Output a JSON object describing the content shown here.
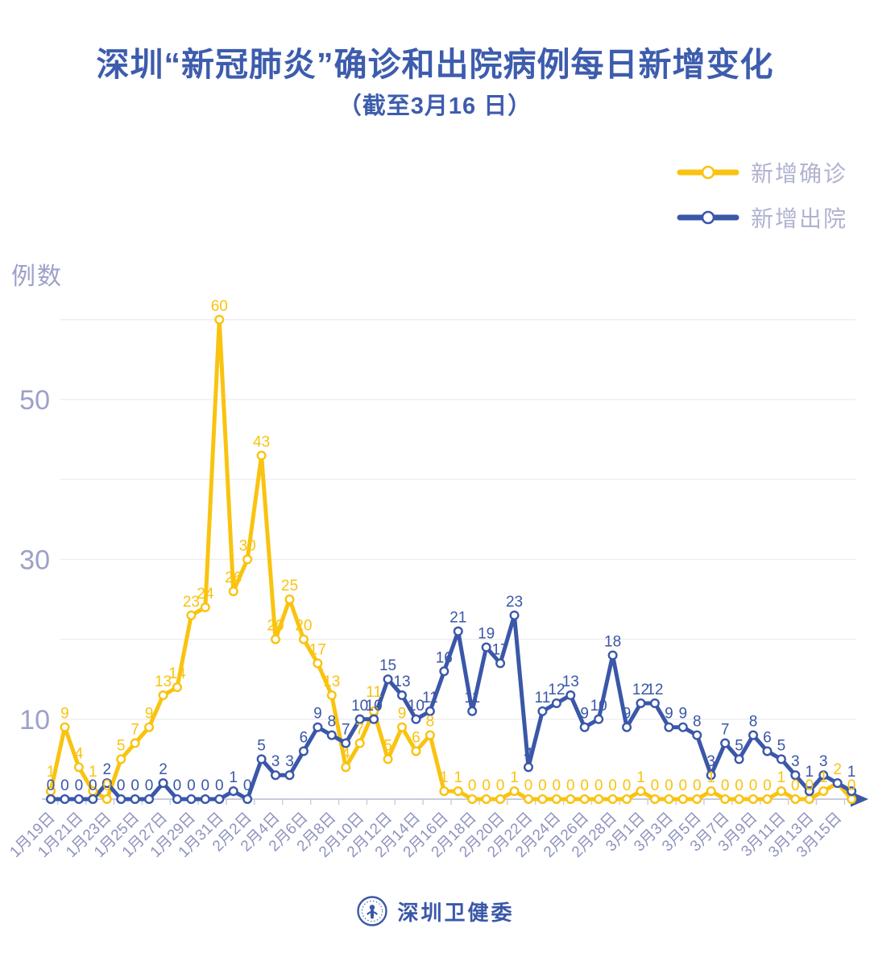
{
  "title": "深圳“新冠肺炎”确诊和出院病例每日新增变化",
  "subtitle": "（截至3月16 日）",
  "colors": {
    "confirmed_yellow": "#f9c30f",
    "discharged_blue": "#3a57a8",
    "title_blue": "#3d5cad",
    "axis_text": "#9da1c9",
    "date_text": "#8e93bf",
    "grid_line": "#ececf2",
    "axis_line": "#c9cbdb",
    "legend_text": "#b0b3cf"
  },
  "y_axis": {
    "label": "例数",
    "ticks": [
      10,
      30,
      50
    ]
  },
  "legend": {
    "items": [
      {
        "id": "confirmed",
        "label": "新增确诊",
        "color": "#f9c30f"
      },
      {
        "id": "discharged",
        "label": "新增出院",
        "color": "#3a57a8"
      }
    ]
  },
  "footer": {
    "org": "深圳卫健委"
  },
  "chart_data": {
    "type": "line",
    "title": "深圳“新冠肺炎”确诊和出院病例每日新增变化",
    "subtitle": "（截至3月16 日）",
    "ylabel": "例数",
    "ylim": [
      0,
      62
    ],
    "gridlines": [
      10,
      20,
      30,
      40,
      50,
      60
    ],
    "y_ticks_labeled": [
      10,
      30,
      50
    ],
    "x_tick_step": 2,
    "legend_position": "top-right",
    "categories": [
      "1月19日",
      "1月20日",
      "1月21日",
      "1月22日",
      "1月23日",
      "1月24日",
      "1月25日",
      "1月26日",
      "1月27日",
      "1月28日",
      "1月29日",
      "1月30日",
      "1月31日",
      "2月1日",
      "2月2日",
      "2月3日",
      "2月4日",
      "2月5日",
      "2月6日",
      "2月7日",
      "2月8日",
      "2月9日",
      "2月10日",
      "2月11日",
      "2月12日",
      "2月13日",
      "2月14日",
      "2月15日",
      "2月16日",
      "2月17日",
      "2月18日",
      "2月19日",
      "2月20日",
      "2月21日",
      "2月22日",
      "2月23日",
      "2月24日",
      "2月25日",
      "2月26日",
      "2月27日",
      "2月28日",
      "2月29日",
      "3月1日",
      "3月2日",
      "3月3日",
      "3月4日",
      "3月5日",
      "3月6日",
      "3月7日",
      "3月8日",
      "3月9日",
      "3月10日",
      "3月11日",
      "3月12日",
      "3月13日",
      "3月14日",
      "3月15日",
      "3月16日"
    ],
    "series": [
      {
        "id": "confirmed",
        "name": "新增确诊",
        "color": "#f9c30f",
        "values": [
          1,
          9,
          4,
          1,
          0,
          5,
          7,
          9,
          13,
          14,
          23,
          24,
          60,
          26,
          30,
          43,
          20,
          25,
          20,
          17,
          13,
          4,
          7,
          11,
          5,
          9,
          6,
          8,
          1,
          1,
          0,
          0,
          0,
          1,
          0,
          0,
          0,
          0,
          0,
          0,
          0,
          0,
          1,
          0,
          0,
          0,
          0,
          1,
          0,
          0,
          0,
          0,
          1,
          0,
          0,
          1,
          2,
          0
        ]
      },
      {
        "id": "discharged",
        "name": "新增出院",
        "color": "#3a57a8",
        "values": [
          0,
          0,
          0,
          0,
          2,
          0,
          0,
          0,
          2,
          0,
          0,
          0,
          0,
          1,
          0,
          5,
          3,
          3,
          6,
          9,
          8,
          7,
          10,
          10,
          15,
          13,
          10,
          11,
          16,
          21,
          11,
          19,
          17,
          23,
          4,
          11,
          12,
          13,
          9,
          10,
          18,
          9,
          12,
          12,
          9,
          9,
          8,
          3,
          7,
          5,
          8,
          6,
          5,
          3,
          1,
          3,
          2,
          1
        ]
      }
    ]
  }
}
